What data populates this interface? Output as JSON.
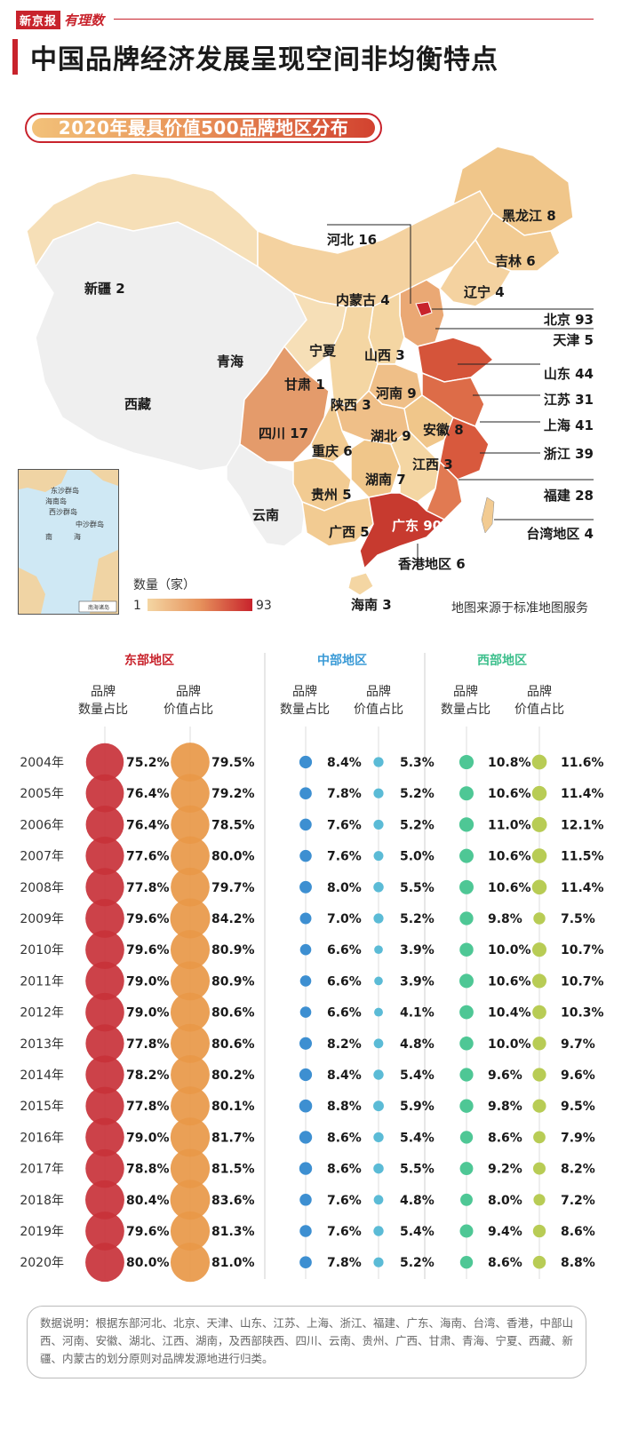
{
  "header": {
    "brand_name": "新京报",
    "brand_logo": "有理数",
    "title": "中国品牌经济发展呈现空间非均衡特点",
    "subtitle": "2020年最具价值500品牌地区分布"
  },
  "map": {
    "colors": {
      "low": "#f4d6a3",
      "high": "#c8232c",
      "none": "#eeeeee"
    },
    "regions": [
      {
        "name": "新疆",
        "count": 2
      },
      {
        "name": "青海",
        "count": null
      },
      {
        "name": "西藏",
        "count": null
      },
      {
        "name": "河北",
        "count": 16
      },
      {
        "name": "内蒙古",
        "count": 4
      },
      {
        "name": "黑龙江",
        "count": 8
      },
      {
        "name": "吉林",
        "count": 6
      },
      {
        "name": "辽宁",
        "count": 4
      },
      {
        "name": "北京",
        "count": 93
      },
      {
        "name": "天津",
        "count": 5
      },
      {
        "name": "宁夏",
        "count": null
      },
      {
        "name": "山西",
        "count": 3
      },
      {
        "name": "甘肃",
        "count": 1
      },
      {
        "name": "山东",
        "count": 44
      },
      {
        "name": "陕西",
        "count": 3
      },
      {
        "name": "河南",
        "count": 9
      },
      {
        "name": "江苏",
        "count": 31
      },
      {
        "name": "四川",
        "count": 17
      },
      {
        "name": "湖北",
        "count": 9
      },
      {
        "name": "安徽",
        "count": 8
      },
      {
        "name": "上海",
        "count": 41
      },
      {
        "name": "重庆",
        "count": 6
      },
      {
        "name": "浙江",
        "count": 39
      },
      {
        "name": "江西",
        "count": 3
      },
      {
        "name": "湖南",
        "count": 7
      },
      {
        "name": "贵州",
        "count": 5
      },
      {
        "name": "福建",
        "count": 28
      },
      {
        "name": "云南",
        "count": null
      },
      {
        "name": "广西",
        "count": 5
      },
      {
        "name": "广东",
        "count": 90
      },
      {
        "name": "台湾地区",
        "count": 4
      },
      {
        "name": "香港地区",
        "count": 6
      },
      {
        "name": "海南",
        "count": 3
      }
    ],
    "legend_title": "数量（家）",
    "legend_min": "1",
    "legend_max": "93",
    "source": "地图来源于标准地图服务",
    "inset_labels": [
      "东沙群岛",
      "海南岛",
      "西沙群岛",
      "中沙群岛",
      "南",
      "海",
      "南海诸岛"
    ]
  },
  "chart_data": {
    "type": "table",
    "years": [
      "2004年",
      "2005年",
      "2006年",
      "2007年",
      "2008年",
      "2009年",
      "2010年",
      "2011年",
      "2012年",
      "2013年",
      "2014年",
      "2015年",
      "2016年",
      "2017年",
      "2018年",
      "2019年",
      "2020年"
    ],
    "groups": [
      {
        "name": "东部地区",
        "color": "#c8232c",
        "columns": [
          {
            "label": [
              "品牌",
              "数量占比"
            ],
            "color": "#c8323a",
            "values": [
              75.2,
              76.4,
              76.4,
              77.6,
              77.8,
              79.6,
              79.6,
              79.0,
              79.0,
              77.8,
              78.2,
              77.8,
              79.0,
              78.8,
              80.4,
              79.6,
              80.0
            ]
          },
          {
            "label": [
              "品牌",
              "价值占比"
            ],
            "color": "#e89848",
            "values": [
              79.5,
              79.2,
              78.5,
              80.0,
              79.7,
              84.2,
              80.9,
              80.9,
              80.6,
              80.6,
              80.2,
              80.1,
              81.7,
              81.5,
              83.6,
              81.3,
              81.0
            ]
          }
        ]
      },
      {
        "name": "中部地区",
        "color": "#3a9ad6",
        "columns": [
          {
            "label": [
              "品牌",
              "数量占比"
            ],
            "color": "#3d8fd1",
            "values": [
              8.4,
              7.8,
              7.6,
              7.6,
              8.0,
              7.0,
              6.6,
              6.6,
              6.6,
              8.2,
              8.4,
              8.8,
              8.6,
              8.6,
              7.6,
              7.6,
              7.8
            ]
          },
          {
            "label": [
              "品牌",
              "价值占比"
            ],
            "color": "#5bbbd6",
            "values": [
              5.3,
              5.2,
              5.2,
              5.0,
              5.5,
              5.2,
              3.9,
              3.9,
              4.1,
              4.8,
              5.4,
              5.9,
              5.4,
              5.5,
              4.8,
              5.4,
              5.2
            ]
          }
        ]
      },
      {
        "name": "西部地区",
        "color": "#3cbf8c",
        "columns": [
          {
            "label": [
              "品牌",
              "数量占比"
            ],
            "color": "#4ec795",
            "values": [
              10.8,
              10.6,
              11.0,
              10.6,
              10.6,
              9.8,
              10.0,
              10.6,
              10.4,
              10.0,
              9.6,
              9.8,
              8.6,
              9.2,
              8.0,
              9.4,
              8.6
            ]
          },
          {
            "label": [
              "品牌",
              "价值占比"
            ],
            "color": "#b8cc55",
            "values": [
              11.6,
              11.4,
              12.1,
              11.5,
              11.4,
              7.5,
              10.7,
              10.7,
              10.3,
              9.7,
              9.6,
              9.5,
              7.9,
              8.2,
              7.2,
              8.6,
              8.8
            ]
          }
        ]
      }
    ]
  },
  "footnote": "数据说明：根据东部河北、北京、天津、山东、江苏、上海、浙江、福建、广东、海南、台湾、香港，中部山西、河南、安徽、湖北、江西、湖南，及西部陕西、四川、云南、贵州、广西、甘肃、青海、宁夏、西藏、新疆、内蒙古的划分原则对品牌发源地进行归类。"
}
